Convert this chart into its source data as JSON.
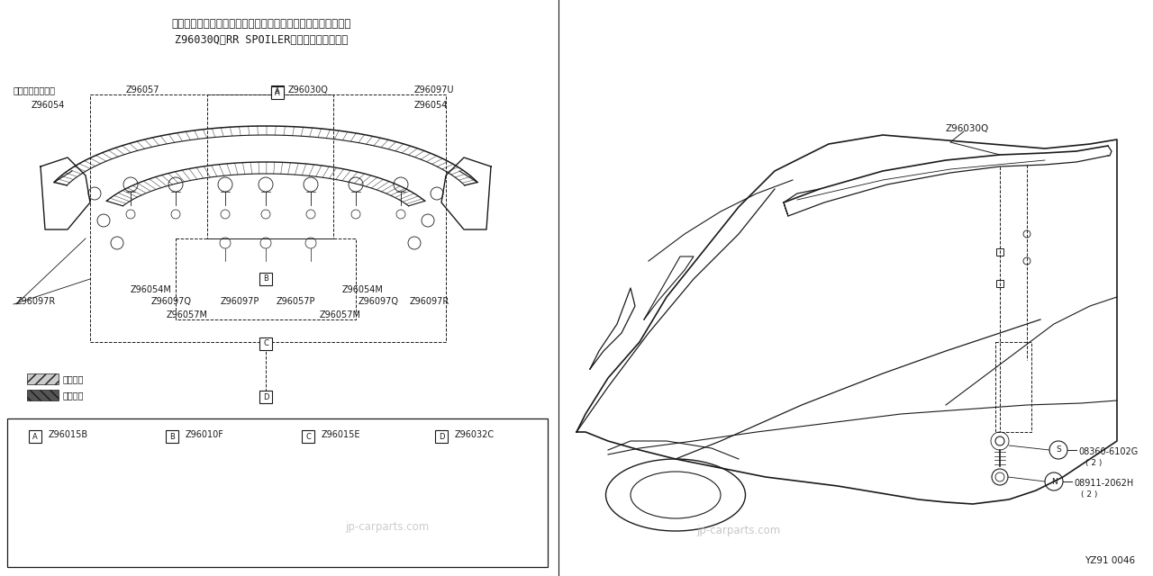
{
  "bg_color": "#ffffff",
  "line_color": "#1a1a1a",
  "title_line1": "注記：以下に示すシール・テープ・クリップ・スペーサー類は",
  "title_line2": "Z96030Q（RR SPOILER）の構成部品です。",
  "watermark": "jp-carparts.com",
  "diagram_number": "YZ91 0046"
}
